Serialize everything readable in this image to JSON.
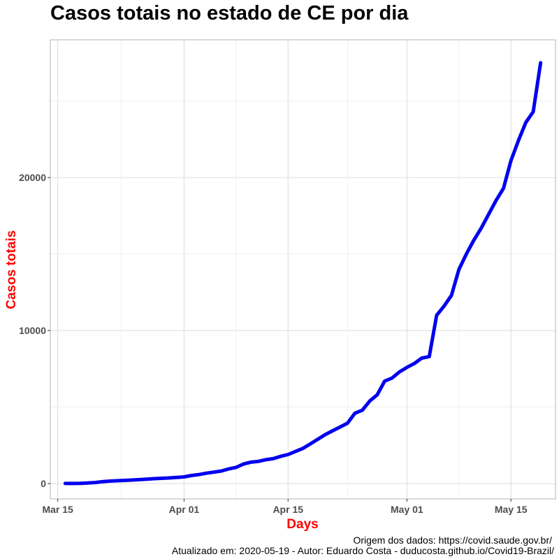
{
  "chart_data": {
    "type": "line",
    "title": "Casos totais no estado de CE por dia",
    "xlabel": "Days",
    "ylabel": "Casos totais",
    "x_ticks": [
      {
        "date": "2020-03-15",
        "label": "Mar 15"
      },
      {
        "date": "2020-04-01",
        "label": "Apr 01"
      },
      {
        "date": "2020-04-15",
        "label": "Apr 15"
      },
      {
        "date": "2020-05-01",
        "label": "May 01"
      },
      {
        "date": "2020-05-15",
        "label": "May 15"
      }
    ],
    "y_ticks": [
      {
        "value": 0,
        "label": "0"
      },
      {
        "value": 10000,
        "label": "10000"
      },
      {
        "value": 20000,
        "label": "20000"
      }
    ],
    "xlim": [
      "2020-03-14",
      "2020-05-21"
    ],
    "ylim": [
      -1000,
      29000
    ],
    "grid": true,
    "line_color": "#0000ee",
    "axis_title_color": "#ff0000",
    "series": [
      {
        "x": [
          "2020-03-16",
          "2020-03-17",
          "2020-03-18",
          "2020-03-19",
          "2020-03-20",
          "2020-03-21",
          "2020-03-22",
          "2020-03-23",
          "2020-03-24",
          "2020-03-25",
          "2020-03-26",
          "2020-03-27",
          "2020-03-28",
          "2020-03-29",
          "2020-03-30",
          "2020-03-31",
          "2020-04-01",
          "2020-04-02",
          "2020-04-03",
          "2020-04-04",
          "2020-04-05",
          "2020-04-06",
          "2020-04-07",
          "2020-04-08",
          "2020-04-09",
          "2020-04-10",
          "2020-04-11",
          "2020-04-12",
          "2020-04-13",
          "2020-04-14",
          "2020-04-15",
          "2020-04-16",
          "2020-04-17",
          "2020-04-18",
          "2020-04-19",
          "2020-04-20",
          "2020-04-21",
          "2020-04-22",
          "2020-04-23",
          "2020-04-24",
          "2020-04-25",
          "2020-04-26",
          "2020-04-27",
          "2020-04-28",
          "2020-04-29",
          "2020-04-30",
          "2020-05-01",
          "2020-05-02",
          "2020-05-03",
          "2020-05-04",
          "2020-05-05",
          "2020-05-06",
          "2020-05-07",
          "2020-05-08",
          "2020-05-09",
          "2020-05-10",
          "2020-05-11",
          "2020-05-12",
          "2020-05-13",
          "2020-05-14",
          "2020-05-15",
          "2020-05-16",
          "2020-05-17",
          "2020-05-18",
          "2020-05-19"
        ],
        "y": [
          9,
          10,
          20,
          40,
          68,
          125,
          163,
          188,
          211,
          235,
          260,
          290,
          322,
          348,
          372,
          401,
          440,
          530,
          590,
          680,
          750,
          820,
          960,
          1060,
          1280,
          1400,
          1450,
          1560,
          1630,
          1780,
          1900,
          2100,
          2300,
          2600,
          2900,
          3200,
          3450,
          3700,
          3950,
          4600,
          4800,
          5400,
          5800,
          6700,
          6900,
          7300,
          7600,
          7850,
          8200,
          8300,
          11000,
          11600,
          12300,
          14000,
          15000,
          15900,
          16700,
          17600,
          18500,
          19300,
          21100,
          22400,
          23600,
          24300,
          27500
        ]
      }
    ]
  },
  "caption": {
    "line1": "Origem dos dados: https://covid.saude.gov.br/",
    "line2": "Atualizado em: 2020-05-19    -  Autor: Eduardo Costa - duducosta.github.io/Covid19-Brazil/"
  }
}
